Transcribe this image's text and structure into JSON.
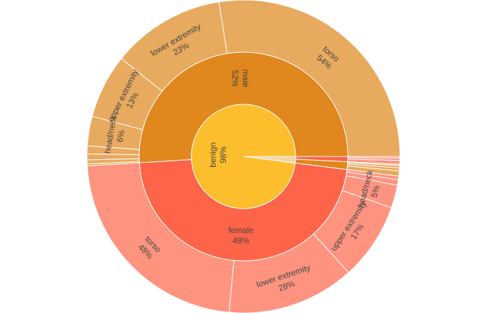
{
  "chart_data": {
    "type": "sunburst",
    "title": "",
    "value_format": "percent of parent",
    "colors": {
      "benign": "#fcbe2d",
      "male": "#e0871e",
      "male_leaf": "#e8aa5f",
      "female": "#fe6447",
      "female_leaf": "#fe9480",
      "malignant": "#f5d6a8"
    },
    "root": [
      {
        "label": "benign",
        "percent": 98,
        "children": [
          {
            "label": "male",
            "percent": 52,
            "children": [
              {
                "label": "torso",
                "percent": 54
              },
              {
                "label": "lower extremity",
                "percent": 23
              },
              {
                "label": "upper extremity",
                "percent": 13
              },
              {
                "label": "head/neck",
                "percent": 6
              },
              {
                "label": "",
                "percent": 1.6
              },
              {
                "label": "",
                "percent": 1.2
              },
              {
                "label": "",
                "percent": 0.8
              },
              {
                "label": "",
                "percent": 0.4
              }
            ]
          },
          {
            "label": "female",
            "percent": 48,
            "children": [
              {
                "label": "torso",
                "percent": 48
              },
              {
                "label": "lower extremity",
                "percent": 28
              },
              {
                "label": "upper extremity",
                "percent": 17
              },
              {
                "label": "head/neck",
                "percent": 5
              },
              {
                "label": "",
                "percent": 1.2
              },
              {
                "label": "",
                "percent": 0.8
              }
            ]
          }
        ]
      },
      {
        "label": "",
        "percent": 2,
        "children": [
          {
            "label": "",
            "percent": 60,
            "children": [
              {
                "label": "",
                "percent": 45
              },
              {
                "label": "",
                "percent": 25
              },
              {
                "label": "",
                "percent": 20
              },
              {
                "label": "",
                "percent": 10
              }
            ]
          },
          {
            "label": "",
            "percent": 40,
            "children": [
              {
                "label": "",
                "percent": 50
              },
              {
                "label": "",
                "percent": 30
              },
              {
                "label": "",
                "percent": 20
              }
            ]
          }
        ]
      }
    ]
  }
}
